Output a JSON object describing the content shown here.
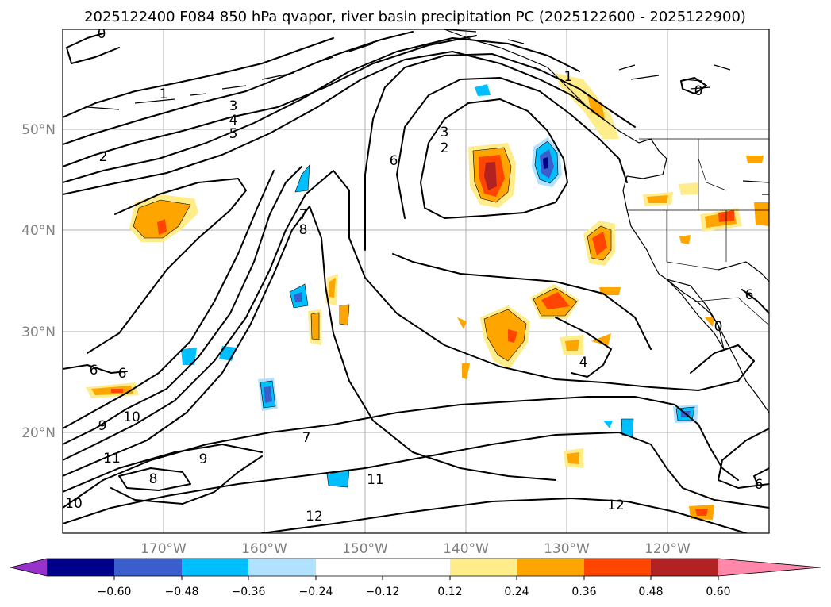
{
  "title": "2025122400 F084 850 hPa qvapor, river basin precipitation PC (2025122600 - 2025122900)",
  "axes": {
    "lon_labels": [
      "170°W",
      "160°W",
      "150°W",
      "140°W",
      "130°W",
      "120°W"
    ],
    "lat_labels": [
      "50°N",
      "40°N",
      "30°N",
      "20°N"
    ]
  },
  "contour_labels": [
    "0",
    "1",
    "2",
    "3",
    "4",
    "5",
    "6",
    "7",
    "8",
    "9",
    "10",
    "11",
    "12",
    "0",
    "1",
    "2",
    "3",
    "4",
    "6",
    "6",
    "7",
    "8",
    "9",
    "11",
    "12",
    "6",
    "0",
    "6",
    "10"
  ],
  "colorbar": {
    "colors": [
      "#9932cc",
      "#00008b",
      "#3a5fcd",
      "#00bfff",
      "#b0e2ff",
      "#ffffff",
      "#ffec8b",
      "#ffa500",
      "#ff4500",
      "#b22222",
      "#ff88aa"
    ],
    "tick_labels": [
      "−0.60",
      "−0.48",
      "−0.36",
      "−0.24",
      "−0.12",
      "0.12",
      "0.24",
      "0.36",
      "0.48",
      "0.60"
    ]
  },
  "palette": {
    "blue_light": "#b0e2ff",
    "blue": "#00bfff",
    "blue_mid": "#3a5fcd",
    "navy": "#00008b",
    "yellow": "#ffec8b",
    "orange": "#ffa500",
    "red_orange": "#ff4500",
    "dark_red": "#b22222",
    "pink": "#ff88aa"
  }
}
